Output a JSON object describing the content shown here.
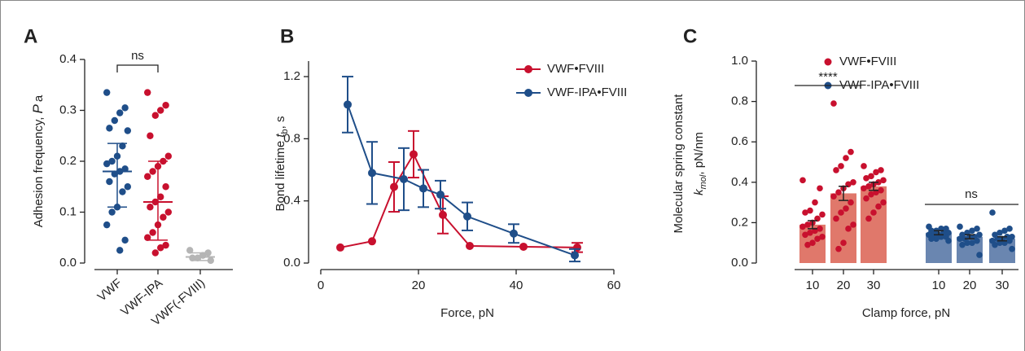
{
  "chart_data": [
    {
      "type": "scatter",
      "label": "A",
      "ylabel": {
        "text": "Adhesion frequency, ",
        "symbol": "P",
        "subscript": "a"
      },
      "ylim": [
        0,
        0.4
      ],
      "yticks": [
        {
          "value": 0,
          "label": "0.0"
        },
        0.1,
        0.2,
        0.3,
        0.4
      ],
      "series": [
        {
          "name": "VWF",
          "color": "#1f4e89",
          "values": [
            0.335,
            0.305,
            0.295,
            0.28,
            0.265,
            0.26,
            0.23,
            0.21,
            0.2,
            0.195,
            0.185,
            0.18,
            0.175,
            0.16,
            0.15,
            0.14,
            0.11,
            0.1,
            0.075,
            0.045,
            0.025
          ],
          "center": 0.18,
          "lower": 0.11,
          "upper": 0.235
        },
        {
          "name": "VWF-IPA",
          "color": "#c8102e",
          "values": [
            0.335,
            0.31,
            0.3,
            0.29,
            0.25,
            0.21,
            0.2,
            0.19,
            0.18,
            0.17,
            0.15,
            0.13,
            0.12,
            0.11,
            0.1,
            0.09,
            0.075,
            0.06,
            0.05,
            0.035,
            0.03,
            0.02
          ],
          "center": 0.12,
          "lower": 0.045,
          "upper": 0.2
        },
        {
          "name": "VWF(-FVIII)",
          "color": "#b5b5b5",
          "values": [
            0.025,
            0.02,
            0.015,
            0.01,
            0.01,
            0.005
          ],
          "center": 0.012,
          "lower": 0.005,
          "upper": 0.02
        }
      ],
      "annotation": "ns"
    },
    {
      "type": "line",
      "label": "B",
      "ylabel": {
        "text": "Bond lifetime ",
        "symbol": "t",
        "subscript": "b",
        "unit": ", s"
      },
      "xlabel": "Force, pN",
      "xlim": [
        0,
        60
      ],
      "xticks": [
        0,
        20,
        40,
        60
      ],
      "ylim": [
        0,
        1.3
      ],
      "yticks": [
        {
          "value": 0,
          "label": "0.0"
        },
        0.4,
        0.8,
        1.2
      ],
      "legend": "upper right",
      "series": [
        {
          "name": "VWF•FVIII",
          "color": "#c8102e",
          "x": [
            4,
            10.5,
            15,
            19,
            25,
            30.5,
            41.5,
            52.5
          ],
          "values": [
            0.1,
            0.14,
            0.49,
            0.7,
            0.31,
            0.11,
            0.105,
            0.1
          ],
          "errors": [
            null,
            null,
            0.16,
            0.15,
            0.12,
            null,
            null,
            0.03
          ]
        },
        {
          "name": "VWF-IPA•FVIII",
          "color": "#1f4e89",
          "x": [
            5.5,
            10.5,
            17,
            21,
            24.5,
            30,
            39.5,
            52
          ],
          "values": [
            1.02,
            0.58,
            0.54,
            0.48,
            0.44,
            0.3,
            0.19,
            0.05
          ],
          "errors": [
            0.18,
            0.2,
            0.2,
            0.12,
            0.09,
            0.09,
            0.06,
            0.04
          ]
        }
      ]
    },
    {
      "type": "bar",
      "label": "C",
      "ylabel": "Molecular spring constant",
      "ylabel2": {
        "symbol": "k",
        "subscript": "mol",
        "unit": ", pN/nm"
      },
      "xlabel": "Clamp force, pN",
      "categories": [
        "10",
        "20",
        "30"
      ],
      "ylim": [
        0,
        1.0
      ],
      "yticks": [
        {
          "value": 0,
          "label": "0.0"
        },
        0.2,
        0.4,
        0.6,
        0.8,
        {
          "value": 1,
          "label": "1.0"
        }
      ],
      "legend": "upper right",
      "series": [
        {
          "name": "VWF•FVIII",
          "color": "#c8102e",
          "bar_color": "#e0786b",
          "values": [
            0.19,
            0.345,
            0.38
          ],
          "errors": [
            0.02,
            0.035,
            0.02
          ],
          "points": [
            [
              0.41,
              0.37,
              0.3,
              0.26,
              0.25,
              0.24,
              0.22,
              0.2,
              0.19,
              0.18,
              0.17,
              0.16,
              0.15,
              0.14,
              0.13,
              0.12,
              0.1,
              0.09
            ],
            [
              0.79,
              0.55,
              0.52,
              0.48,
              0.46,
              0.4,
              0.39,
              0.37,
              0.35,
              0.33,
              0.3,
              0.27,
              0.25,
              0.22,
              0.19,
              0.17,
              0.1,
              0.07
            ],
            [
              0.48,
              0.46,
              0.45,
              0.43,
              0.42,
              0.41,
              0.4,
              0.39,
              0.38,
              0.37,
              0.36,
              0.35,
              0.34,
              0.32,
              0.3,
              0.28,
              0.25,
              0.22
            ]
          ]
        },
        {
          "name": "VWF-IPA•FVIII",
          "color": "#1f4e89",
          "bar_color": "#6a86b0",
          "values": [
            0.15,
            0.13,
            0.12
          ],
          "errors": [
            0.01,
            0.01,
            0.01
          ],
          "points": [
            [
              0.18,
              0.17,
              0.17,
              0.16,
              0.16,
              0.15,
              0.15,
              0.14,
              0.14,
              0.14,
              0.13,
              0.13,
              0.12,
              0.12,
              0.11
            ],
            [
              0.18,
              0.17,
              0.16,
              0.15,
              0.14,
              0.14,
              0.13,
              0.13,
              0.12,
              0.12,
              0.11,
              0.1,
              0.1,
              0.09,
              0.04
            ],
            [
              0.25,
              0.17,
              0.16,
              0.15,
              0.14,
              0.13,
              0.13,
              0.12,
              0.12,
              0.11,
              0.11,
              0.1,
              0.1,
              0.09,
              0.07
            ]
          ]
        }
      ],
      "annotations": [
        "****",
        "ns"
      ]
    }
  ]
}
